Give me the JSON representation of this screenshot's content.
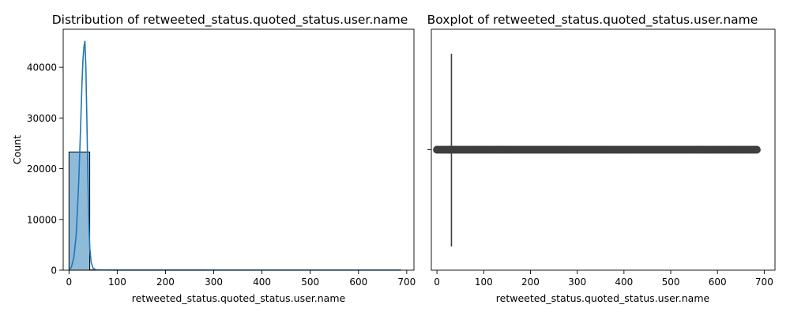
{
  "chart_data": [
    {
      "type": "histogram",
      "title": "Distribution of retweeted_status.quoted_status.user.name",
      "xlabel": "retweeted_status.quoted_status.user.name",
      "ylabel": "Count",
      "xlim": [
        -12,
        715
      ],
      "ylim": [
        0,
        47500
      ],
      "xticks": [
        0,
        100,
        200,
        300,
        400,
        500,
        600,
        700
      ],
      "yticks": [
        0,
        10000,
        20000,
        30000,
        40000
      ],
      "bins": [
        {
          "x0": 0,
          "x1": 43,
          "count": 23300
        },
        {
          "x0": 43,
          "x1": 86,
          "count": 60
        },
        {
          "x0": 86,
          "x1": 129,
          "count": 15
        },
        {
          "x0": 129,
          "x1": 172,
          "count": 10
        },
        {
          "x0": 172,
          "x1": 215,
          "count": 8
        },
        {
          "x0": 215,
          "x1": 258,
          "count": 6
        },
        {
          "x0": 258,
          "x1": 301,
          "count": 6
        },
        {
          "x0": 301,
          "x1": 344,
          "count": 5
        },
        {
          "x0": 344,
          "x1": 387,
          "count": 5
        },
        {
          "x0": 387,
          "x1": 430,
          "count": 4
        },
        {
          "x0": 430,
          "x1": 473,
          "count": 4
        },
        {
          "x0": 473,
          "x1": 516,
          "count": 4
        },
        {
          "x0": 516,
          "x1": 559,
          "count": 3
        },
        {
          "x0": 559,
          "x1": 602,
          "count": 3
        },
        {
          "x0": 602,
          "x1": 645,
          "count": 3
        },
        {
          "x0": 645,
          "x1": 688,
          "count": 3
        }
      ],
      "kde": {
        "x": [
          0,
          5,
          10,
          15,
          20,
          24,
          27,
          29,
          31,
          33,
          35,
          37,
          39,
          41,
          43,
          46,
          50,
          55,
          60,
          70,
          100,
          200,
          300,
          400,
          500,
          600,
          688
        ],
        "y": [
          50,
          600,
          2500,
          7000,
          17000,
          28000,
          37000,
          41500,
          44000,
          45200,
          40000,
          30000,
          19000,
          10000,
          4500,
          1500,
          400,
          100,
          50,
          40,
          30,
          25,
          20,
          20,
          20,
          20,
          20
        ]
      },
      "colors": {
        "bar": "#1f77b4",
        "bar_opacity": 0.5,
        "edge": "#000000",
        "kde": "#1f77b4"
      }
    },
    {
      "type": "boxplot",
      "title": "Boxplot of retweeted_status.quoted_status.user.name",
      "xlabel": "retweeted_status.quoted_status.user.name",
      "xlim": [
        -12,
        723
      ],
      "xticks": [
        0,
        100,
        200,
        300,
        400,
        500,
        600,
        700
      ],
      "box": {
        "whisker_low": 31,
        "q1": 31,
        "median": 31,
        "q3": 31,
        "whisker_high": 31
      },
      "outliers": {
        "min": 0,
        "max": 685,
        "step": 4
      },
      "colors": {
        "box": "#3f3f3f",
        "outlier_fill": "#3f3f3f",
        "outlier_edge": "#3f3f3f"
      }
    }
  ]
}
